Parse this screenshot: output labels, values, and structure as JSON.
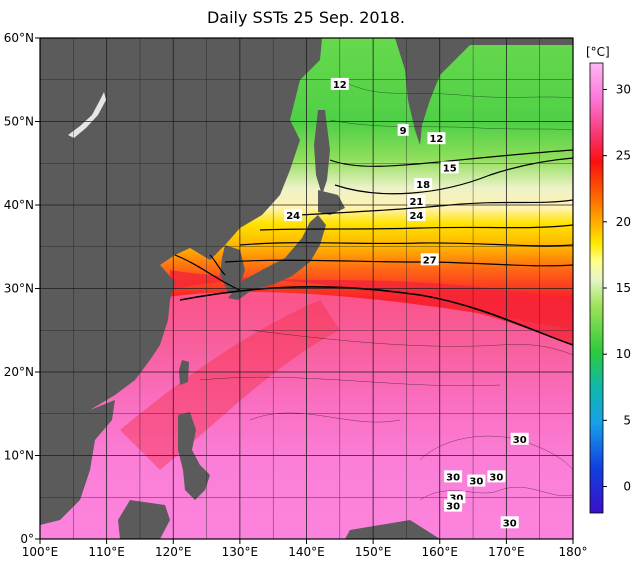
{
  "title": "Daily SSTs 25 Sep. 2018.",
  "lat_labels": [
    "60°N",
    "50°N",
    "40°N",
    "30°N",
    "20°N",
    "10°N",
    "0°"
  ],
  "lon_labels": [
    "100°E",
    "110°E",
    "120°E",
    "130°E",
    "140°E",
    "150°E",
    "160°E",
    "170°E",
    "180°"
  ],
  "colorbar": {
    "unit": "[°C]",
    "ticks": [
      "30",
      "25",
      "20",
      "15",
      "10",
      "5",
      "0"
    ]
  },
  "contour_labels": [
    {
      "text": "12",
      "lon": 145,
      "lat": 54.5
    },
    {
      "text": "9",
      "lon": 154.5,
      "lat": 49.0
    },
    {
      "text": "12",
      "lon": 159.5,
      "lat": 48.0
    },
    {
      "text": "15",
      "lon": 161.5,
      "lat": 44.5
    },
    {
      "text": "18",
      "lon": 157.5,
      "lat": 42.5
    },
    {
      "text": "21",
      "lon": 156.5,
      "lat": 40.5
    },
    {
      "text": "24",
      "lon": 156.5,
      "lat": 38.8
    },
    {
      "text": "24",
      "lon": 138.0,
      "lat": 38.8
    },
    {
      "text": "27",
      "lon": 158.5,
      "lat": 33.5
    },
    {
      "text": "30",
      "lon": 172.0,
      "lat": 12.0
    },
    {
      "text": "30",
      "lon": 162.0,
      "lat": 7.5
    },
    {
      "text": "30",
      "lon": 165.5,
      "lat": 7.0
    },
    {
      "text": "30",
      "lon": 168.5,
      "lat": 7.5
    },
    {
      "text": "30",
      "lon": 162.5,
      "lat": 5.0
    },
    {
      "text": "30",
      "lon": 162.0,
      "lat": 4.0
    },
    {
      "text": "30",
      "lon": 170.5,
      "lat": 2.0
    }
  ],
  "colors": {
    "land": "#5b5b5b",
    "grid": "#1e1e1e",
    "contour": "#000000"
  }
}
